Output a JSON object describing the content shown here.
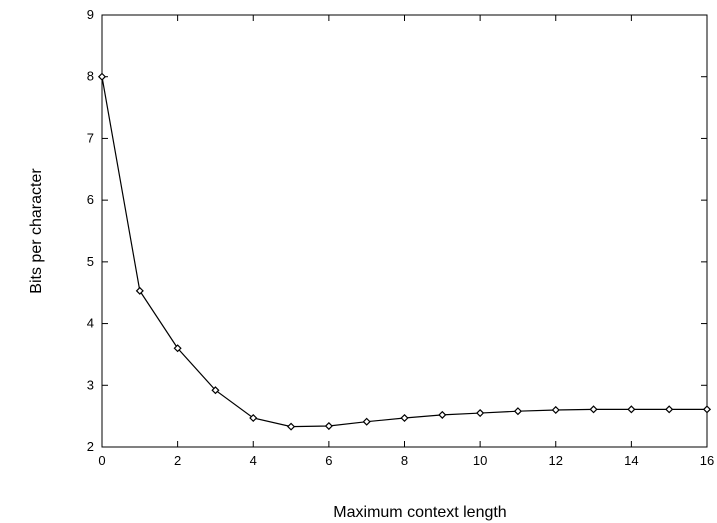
{
  "chart_data": {
    "type": "line",
    "title": "",
    "xlabel": "Maximum context length",
    "ylabel": "Bits per character",
    "xlim": [
      0,
      16
    ],
    "ylim": [
      2,
      9
    ],
    "xticks": [
      "0",
      "2",
      "4",
      "6",
      "8",
      "10",
      "12",
      "14",
      "16"
    ],
    "yticks": [
      "2",
      "3",
      "4",
      "5",
      "6",
      "7",
      "8",
      "9"
    ],
    "grid": false,
    "legend": "none",
    "marker": "diamond",
    "color": "#000000",
    "series": [
      {
        "x": [
          0,
          1,
          2,
          3,
          4,
          5,
          6,
          7,
          8,
          9,
          10,
          11,
          12,
          13,
          14,
          15,
          16
        ],
        "values": [
          8.0,
          4.53,
          3.6,
          2.92,
          2.47,
          2.33,
          2.34,
          2.41,
          2.47,
          2.52,
          2.55,
          2.58,
          2.6,
          2.61,
          2.61,
          2.61,
          2.61
        ]
      }
    ]
  }
}
